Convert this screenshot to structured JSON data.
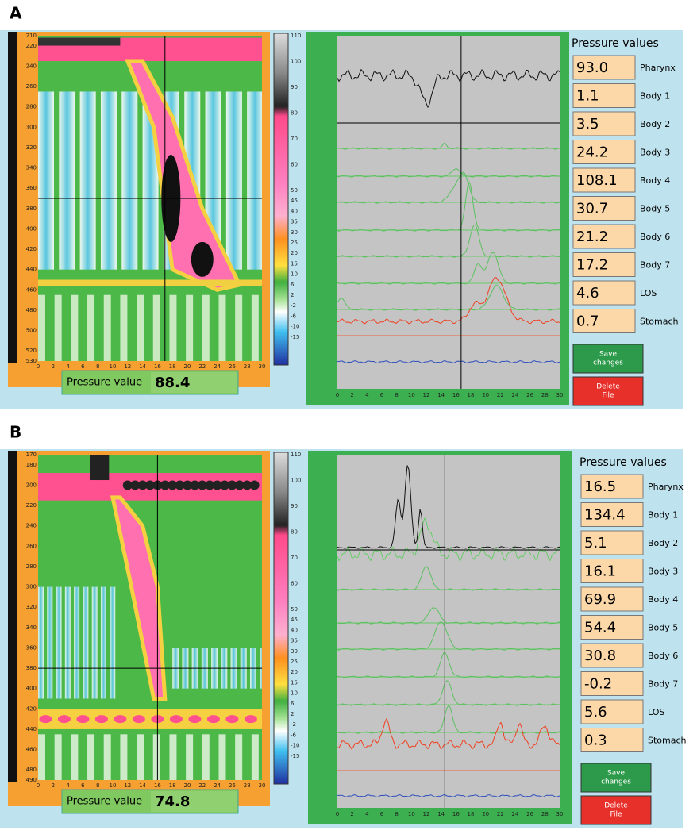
{
  "panels": [
    {
      "label": "A",
      "heatmap_yticks": [
        210,
        220,
        240,
        260,
        280,
        300,
        320,
        340,
        360,
        380,
        400,
        420,
        440,
        460,
        480,
        500,
        520,
        530
      ],
      "heatmap_xticks": [
        0,
        2,
        4,
        6,
        8,
        10,
        12,
        14,
        16,
        18,
        20,
        22,
        24,
        26,
        28,
        30
      ],
      "colorbar_ticks": [
        110,
        100,
        90,
        80,
        70,
        60,
        50,
        45,
        40,
        35,
        30,
        25,
        20,
        15,
        10,
        6,
        2,
        -2,
        -6,
        -10,
        -15
      ],
      "pressure_value": {
        "label": "Pressure value",
        "value": "88.4"
      },
      "trace_xticks": [
        0,
        2,
        4,
        6,
        8,
        10,
        12,
        14,
        16,
        18,
        20,
        22,
        24,
        26,
        28,
        30
      ],
      "pressure_values": {
        "title": "Pressure values",
        "rows": [
          {
            "value": "93.0",
            "name": "Pharynx"
          },
          {
            "value": "1.1",
            "name": "Body 1"
          },
          {
            "value": "3.5",
            "name": "Body 2"
          },
          {
            "value": "24.2",
            "name": "Body 3"
          },
          {
            "value": "108.1",
            "name": "Body 4"
          },
          {
            "value": "30.7",
            "name": "Body 5"
          },
          {
            "value": "21.2",
            "name": "Body 6"
          },
          {
            "value": "17.2",
            "name": "Body 7"
          },
          {
            "value": "4.6",
            "name": "LOS"
          },
          {
            "value": "0.7",
            "name": "Stomach"
          }
        ]
      },
      "buttons": {
        "save": [
          "Save",
          "changes"
        ],
        "delete": [
          "Delete",
          "File"
        ]
      }
    },
    {
      "label": "B",
      "heatmap_yticks": [
        170,
        180,
        200,
        220,
        240,
        260,
        280,
        300,
        320,
        340,
        360,
        380,
        400,
        420,
        440,
        460,
        480,
        490
      ],
      "heatmap_xticks": [
        0,
        2,
        4,
        6,
        8,
        10,
        12,
        14,
        16,
        18,
        20,
        22,
        24,
        26,
        28,
        30
      ],
      "colorbar_ticks": [
        110,
        100,
        90,
        80,
        70,
        60,
        50,
        45,
        40,
        35,
        30,
        25,
        20,
        15,
        10,
        6,
        2,
        -2,
        -6,
        -10,
        -15
      ],
      "pressure_value": {
        "label": "Pressure value",
        "value": "74.8"
      },
      "trace_xticks": [
        0,
        2,
        4,
        6,
        8,
        10,
        12,
        14,
        16,
        18,
        20,
        22,
        24,
        26,
        28,
        30
      ],
      "pressure_values": {
        "title": "Pressure values",
        "rows": [
          {
            "value": "16.5",
            "name": "Pharynx"
          },
          {
            "value": "134.4",
            "name": "Body 1"
          },
          {
            "value": "5.1",
            "name": "Body 2"
          },
          {
            "value": "16.1",
            "name": "Body 3"
          },
          {
            "value": "69.9",
            "name": "Body 4"
          },
          {
            "value": "54.4",
            "name": "Body 5"
          },
          {
            "value": "30.8",
            "name": "Body 6"
          },
          {
            "value": "-0.2",
            "name": "Body 7"
          },
          {
            "value": "5.6",
            "name": "LOS"
          },
          {
            "value": "0.3",
            "name": "Stomach"
          }
        ]
      },
      "buttons": {
        "save": [
          "Save",
          "changes"
        ],
        "delete": [
          "Delete",
          "File"
        ]
      }
    }
  ]
}
